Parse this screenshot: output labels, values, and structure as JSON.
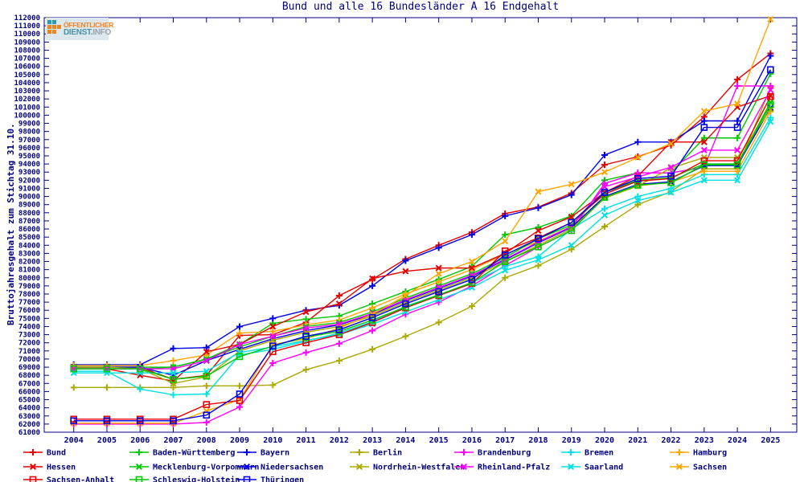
{
  "logo": {
    "line1": "ÖFFENTLICHER",
    "line2_a": "DIENST.",
    "line2_b": "INFO"
  },
  "theme": {
    "axis_color": "#000080",
    "background": "#ffffff"
  },
  "chart_data": {
    "type": "line",
    "title": "Bund und alle 16 Bundesländer A 16 Endgehalt",
    "xlabel": "",
    "ylabel": "Bruttojahresgehalt zum Stichtag 31.10.",
    "ylim": [
      61000,
      112000
    ],
    "ytick_step": 1000,
    "grid": false,
    "legend_position": "bottom",
    "x": [
      2004,
      2005,
      2006,
      2007,
      2008,
      2009,
      2010,
      2011,
      2012,
      2013,
      2014,
      2015,
      2016,
      2017,
      2018,
      2019,
      2020,
      2021,
      2022,
      2023,
      2024,
      2025
    ],
    "series": [
      {
        "name": "Bund",
        "color": "#e60000",
        "marker": "plus",
        "values": [
          69000,
          69000,
          69000,
          67500,
          68000,
          72900,
          73000,
          74500,
          77800,
          79800,
          82300,
          84000,
          85600,
          87900,
          88700,
          90400,
          93900,
          94900,
          96300,
          99800,
          104400,
          107600
        ]
      },
      {
        "name": "Baden-Württemberg",
        "color": "#00c800",
        "marker": "plus",
        "values": [
          69000,
          69000,
          69000,
          69000,
          70000,
          71800,
          74400,
          74900,
          75300,
          76800,
          78300,
          79800,
          81400,
          85300,
          86200,
          87600,
          92000,
          92900,
          92900,
          97200,
          97200,
          105100
        ]
      },
      {
        "name": "Bayern",
        "color": "#0000e6",
        "marker": "plus",
        "values": [
          69300,
          69300,
          69300,
          71300,
          71400,
          74000,
          75000,
          76000,
          76600,
          79000,
          82100,
          83700,
          85300,
          87600,
          88600,
          90200,
          95100,
          96700,
          96700,
          99300,
          99300,
          107300
        ]
      },
      {
        "name": "Berlin",
        "color": "#aaaa00",
        "marker": "plus",
        "values": [
          66500,
          66500,
          66500,
          66500,
          66700,
          66700,
          66800,
          68700,
          69800,
          71200,
          72800,
          74500,
          76500,
          80000,
          81500,
          83500,
          86300,
          89000,
          90600,
          93400,
          93400,
          103400
        ]
      },
      {
        "name": "Brandenburg",
        "color": "#ff00ff",
        "marker": "plus",
        "values": [
          62000,
          62000,
          62000,
          62000,
          62200,
          64100,
          69500,
          70800,
          71900,
          73500,
          75500,
          77000,
          79000,
          81500,
          83800,
          85800,
          91600,
          92900,
          92900,
          93600,
          103600,
          103600
        ]
      },
      {
        "name": "Bremen",
        "color": "#00e1e1",
        "marker": "plus",
        "values": [
          68500,
          68500,
          66300,
          65600,
          65700,
          70500,
          71200,
          72200,
          73200,
          74600,
          76500,
          77900,
          79400,
          81400,
          82600,
          86000,
          88500,
          90000,
          91000,
          92700,
          92700,
          99700
        ]
      },
      {
        "name": "Hamburg",
        "color": "#ffa500",
        "marker": "plus",
        "values": [
          69200,
          69200,
          69200,
          69800,
          70500,
          73200,
          73400,
          74200,
          74800,
          76300,
          78000,
          79500,
          81000,
          82900,
          84500,
          86300,
          89900,
          91300,
          91800,
          93100,
          93100,
          100500
        ]
      },
      {
        "name": "Hessen",
        "color": "#e60000",
        "marker": "cross",
        "values": [
          68800,
          68800,
          68000,
          67300,
          70900,
          71800,
          74000,
          75800,
          76800,
          79900,
          80800,
          81200,
          81200,
          83000,
          85800,
          87500,
          90500,
          92500,
          96700,
          96700,
          101000,
          102400
        ]
      },
      {
        "name": "Mecklenburg-Vorpommern",
        "color": "#00c800",
        "marker": "cross",
        "values": [
          68800,
          68800,
          68800,
          69000,
          70000,
          71500,
          72800,
          74000,
          74500,
          75800,
          77500,
          79000,
          80500,
          82500,
          84800,
          86500,
          90500,
          92000,
          92300,
          94000,
          94000,
          101600
        ]
      },
      {
        "name": "Niedersachsen",
        "color": "#0000e6",
        "marker": "cross",
        "values": [
          69000,
          69000,
          69000,
          68000,
          69800,
          71200,
          72500,
          73500,
          74200,
          75500,
          77200,
          78700,
          80200,
          82200,
          84300,
          86200,
          90000,
          91500,
          91800,
          93800,
          93800,
          100900
        ]
      },
      {
        "name": "Nordrhein-Westfalen",
        "color": "#aaaa00",
        "marker": "cross",
        "values": [
          69000,
          69000,
          68800,
          67000,
          67800,
          71000,
          72300,
          73300,
          74000,
          75300,
          77000,
          78500,
          80000,
          82000,
          84000,
          86000,
          89800,
          91300,
          93500,
          94800,
          94800,
          100700
        ]
      },
      {
        "name": "Rheinland-Pfalz",
        "color": "#ff00ff",
        "marker": "cross",
        "values": [
          68800,
          68800,
          68800,
          68800,
          69800,
          71800,
          72800,
          73800,
          74300,
          75600,
          77300,
          78800,
          80300,
          82300,
          84400,
          86300,
          91200,
          92400,
          93600,
          95700,
          95700,
          103100
        ]
      },
      {
        "name": "Saarland",
        "color": "#00e1e1",
        "marker": "cross",
        "values": [
          68300,
          68300,
          68300,
          68300,
          68500,
          70800,
          71500,
          72300,
          73000,
          74300,
          75800,
          77300,
          78800,
          80900,
          82200,
          84000,
          87700,
          89500,
          90500,
          92000,
          92000,
          99200
        ]
      },
      {
        "name": "Sachsen",
        "color": "#ffa500",
        "marker": "cross",
        "values": [
          62100,
          62100,
          62100,
          62100,
          63600,
          65000,
          71800,
          72500,
          73800,
          75500,
          77800,
          80500,
          82000,
          84500,
          90600,
          91500,
          93000,
          94800,
          96500,
          100500,
          101400,
          111800
        ]
      },
      {
        "name": "Sachsen-Anhalt",
        "color": "#e60000",
        "marker": "square",
        "values": [
          62600,
          62600,
          62600,
          62600,
          64400,
          64900,
          70900,
          72000,
          73000,
          74500,
          76300,
          77800,
          79300,
          83300,
          84900,
          86800,
          90300,
          91900,
          92200,
          94400,
          94400,
          102300
        ]
      },
      {
        "name": "Schleswig-Holstein",
        "color": "#00c800",
        "marker": "square",
        "values": [
          68800,
          68800,
          68800,
          67500,
          67900,
          70300,
          71600,
          72700,
          73400,
          74800,
          76400,
          77900,
          79400,
          82000,
          83800,
          85800,
          89900,
          91400,
          91700,
          93900,
          93900,
          101300
        ]
      },
      {
        "name": "Thüringen",
        "color": "#0000e6",
        "marker": "square",
        "values": [
          62400,
          62400,
          62400,
          62400,
          63100,
          65700,
          71600,
          72800,
          73600,
          75100,
          76800,
          78300,
          79800,
          82800,
          84800,
          86800,
          90500,
          92200,
          92500,
          98500,
          98500,
          105600
        ]
      }
    ]
  }
}
